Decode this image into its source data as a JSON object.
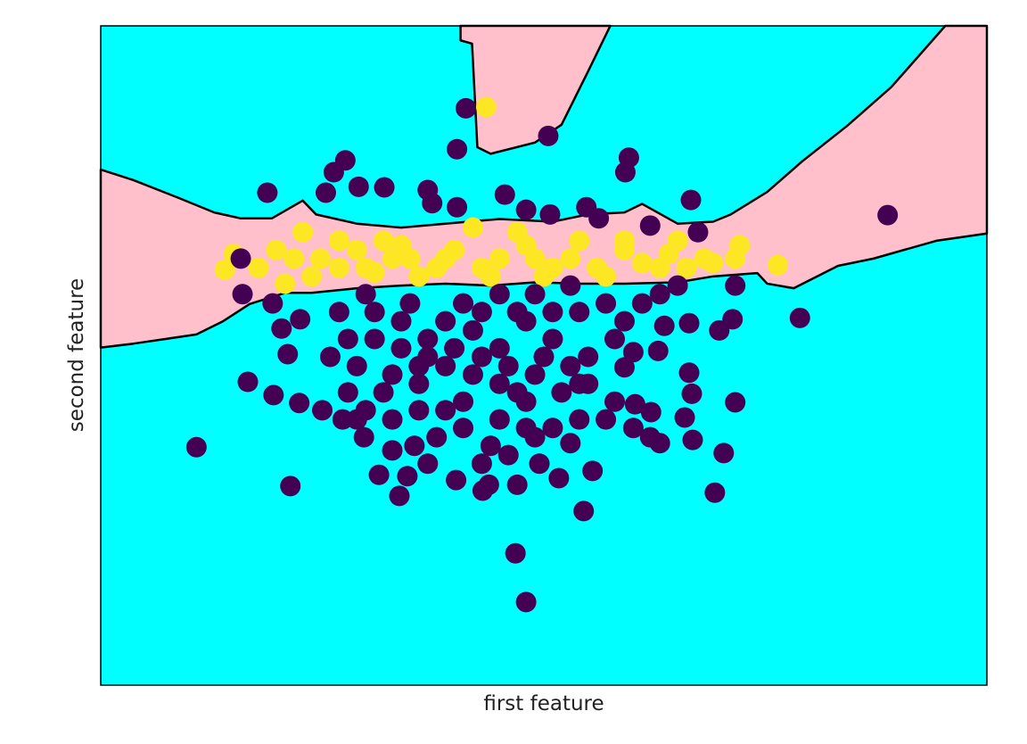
{
  "chart_data": {
    "type": "scatter",
    "title": "",
    "xlabel": "first feature",
    "ylabel": "second feature",
    "xlim": [
      0,
      100
    ],
    "ylim": [
      0,
      100
    ],
    "ticks_shown": false,
    "grid": false,
    "legend": "none",
    "colors": {
      "background_region": "#00ffff",
      "decision_region": "#ffc0cb",
      "boundary": "#000000",
      "class_0": "#440154",
      "class_1": "#fde725"
    },
    "decision_regions": [
      [
        [
          0,
          78.2
        ],
        [
          3.7,
          76.6
        ],
        [
          8.8,
          73.9
        ],
        [
          12.8,
          71.7
        ],
        [
          15.8,
          70.8
        ],
        [
          19.3,
          70.8
        ],
        [
          22.8,
          73.5
        ],
        [
          24.3,
          71.4
        ],
        [
          28.9,
          70.0
        ],
        [
          33.9,
          69.4
        ],
        [
          38.9,
          70.0
        ],
        [
          45,
          70.7
        ],
        [
          51,
          70.3
        ],
        [
          55,
          71.4
        ],
        [
          59.1,
          71.7
        ],
        [
          61.1,
          73.0
        ],
        [
          65.1,
          70.0
        ],
        [
          69.1,
          70.3
        ],
        [
          71.1,
          71.4
        ],
        [
          75.2,
          74.8
        ],
        [
          79.2,
          79.5
        ],
        [
          84.2,
          84.8
        ],
        [
          89.2,
          90.7
        ],
        [
          95.3,
          100
        ],
        [
          100,
          100
        ],
        [
          100,
          68.5
        ],
        [
          94.3,
          67.4
        ],
        [
          87.2,
          64.7
        ],
        [
          83.2,
          63.6
        ],
        [
          78.2,
          60.2
        ],
        [
          75.2,
          60.9
        ],
        [
          74.1,
          62.5
        ],
        [
          69.1,
          62.0
        ],
        [
          65.1,
          61.1
        ],
        [
          59.1,
          60.9
        ],
        [
          54,
          60.9
        ],
        [
          49,
          61.1
        ],
        [
          44,
          60.6
        ],
        [
          38.9,
          60.9
        ],
        [
          33.9,
          60.6
        ],
        [
          28.9,
          60.2
        ],
        [
          23.8,
          59.5
        ],
        [
          20.8,
          59.5
        ],
        [
          16.8,
          57.8
        ],
        [
          13.8,
          55.2
        ],
        [
          10.8,
          53.2
        ],
        [
          7.3,
          52.5
        ],
        [
          3.7,
          51.8
        ],
        [
          0,
          51.2
        ]
      ],
      [
        [
          40.6,
          100
        ],
        [
          40.6,
          97.8
        ],
        [
          41.9,
          97.3
        ],
        [
          42.5,
          81.6
        ],
        [
          44,
          80.6
        ],
        [
          49,
          82.3
        ],
        [
          52,
          85
        ],
        [
          55,
          93.1
        ],
        [
          57.5,
          100
        ]
      ]
    ],
    "series": [
      {
        "class": 1,
        "points": [
          [
            43.5,
            87.7
          ],
          [
            14.0,
            63.0
          ],
          [
            15.0,
            65.4
          ],
          [
            17.8,
            63.3
          ],
          [
            20.8,
            60.9
          ],
          [
            22.8,
            68.7
          ],
          [
            24.8,
            64.7
          ],
          [
            26.9,
            63.3
          ],
          [
            28.9,
            66.0
          ],
          [
            31.9,
            67.4
          ],
          [
            34.9,
            64.7
          ],
          [
            37.9,
            63.3
          ],
          [
            39.9,
            66.0
          ],
          [
            43.0,
            63.3
          ],
          [
            45.0,
            64.7
          ],
          [
            48.0,
            66.7
          ],
          [
            51.0,
            63.3
          ],
          [
            53.0,
            64.7
          ],
          [
            56.0,
            63.3
          ],
          [
            59.1,
            66.0
          ],
          [
            61.1,
            64.0
          ],
          [
            64.1,
            65.4
          ],
          [
            66.1,
            63.3
          ],
          [
            68.1,
            64.7
          ],
          [
            69.1,
            64.0
          ],
          [
            72.1,
            66.7
          ],
          [
            71.6,
            64.7
          ],
          [
            76.4,
            63.7
          ],
          [
            59.1,
            67.4
          ],
          [
            54.0,
            67.4
          ],
          [
            47.0,
            68.7
          ],
          [
            42.0,
            69.4
          ],
          [
            33.9,
            66.7
          ],
          [
            29.9,
            63.3
          ],
          [
            26.9,
            67.4
          ],
          [
            21.8,
            64.7
          ],
          [
            19.8,
            66.0
          ],
          [
            65.1,
            67.4
          ],
          [
            57.0,
            62.0
          ],
          [
            50.0,
            62.0
          ],
          [
            44.0,
            62.0
          ],
          [
            35.9,
            62.0
          ],
          [
            30.9,
            62.6
          ],
          [
            23.8,
            62.0
          ],
          [
            63.1,
            63.3
          ],
          [
            49.0,
            64.7
          ],
          [
            38.9,
            64.7
          ],
          [
            32.9,
            64.7
          ]
        ]
      },
      {
        "class": 0,
        "points": [
          [
            41.2,
            87.5
          ],
          [
            40.2,
            81.3
          ],
          [
            50.5,
            83.3
          ],
          [
            59.6,
            80.0
          ],
          [
            59.2,
            77.8
          ],
          [
            27.6,
            79.6
          ],
          [
            26.3,
            77.8
          ],
          [
            18.8,
            74.7
          ],
          [
            25.4,
            74.7
          ],
          [
            29.1,
            75.6
          ],
          [
            32.0,
            75.5
          ],
          [
            36.9,
            75.1
          ],
          [
            37.4,
            73.1
          ],
          [
            40.2,
            72.5
          ],
          [
            45.6,
            74.4
          ],
          [
            48.0,
            72.1
          ],
          [
            50.7,
            71.4
          ],
          [
            54.8,
            72.5
          ],
          [
            56.2,
            70.8
          ],
          [
            62.0,
            69.7
          ],
          [
            66.6,
            73.6
          ],
          [
            67.4,
            68.7
          ],
          [
            88.8,
            71.3
          ],
          [
            78.9,
            55.7
          ],
          [
            71.6,
            60.6
          ],
          [
            71.3,
            55.5
          ],
          [
            69.8,
            53.8
          ],
          [
            66.4,
            54.9
          ],
          [
            63.6,
            54.5
          ],
          [
            62.9,
            50.7
          ],
          [
            66.4,
            47.4
          ],
          [
            66.7,
            44.2
          ],
          [
            71.6,
            42.9
          ],
          [
            65.9,
            40.6
          ],
          [
            66.8,
            37.2
          ],
          [
            70.3,
            35.2
          ],
          [
            69.3,
            29.2
          ],
          [
            63.1,
            36.7
          ],
          [
            62.0,
            37.6
          ],
          [
            62.1,
            41.4
          ],
          [
            60.3,
            42.6
          ],
          [
            59.1,
            48.2
          ],
          [
            60.1,
            50.5
          ],
          [
            10.8,
            36.1
          ],
          [
            21.4,
            30.2
          ],
          [
            16.6,
            46.0
          ],
          [
            19.5,
            44.0
          ],
          [
            22.4,
            42.8
          ],
          [
            21.1,
            50.2
          ],
          [
            20.4,
            54.1
          ],
          [
            22.5,
            55.5
          ],
          [
            19.4,
            57.9
          ],
          [
            16.0,
            59.3
          ],
          [
            15.8,
            64.7
          ],
          [
            25.0,
            41.7
          ],
          [
            27.3,
            40.3
          ],
          [
            29.7,
            37.6
          ],
          [
            31.4,
            31.9
          ],
          [
            33.7,
            28.7
          ],
          [
            34.6,
            31.7
          ],
          [
            36.9,
            33.6
          ],
          [
            40.1,
            31.1
          ],
          [
            43.1,
            29.5
          ],
          [
            43.8,
            30.4
          ],
          [
            47.0,
            30.4
          ],
          [
            51.7,
            31.4
          ],
          [
            55.5,
            32.5
          ],
          [
            54.5,
            26.4
          ],
          [
            46.8,
            20.0
          ],
          [
            48.0,
            12.6
          ],
          [
            49.5,
            33.6
          ],
          [
            53.0,
            36.7
          ],
          [
            48.0,
            39.0
          ],
          [
            45.0,
            40.3
          ],
          [
            40.9,
            39.0
          ],
          [
            37.9,
            37.6
          ],
          [
            35.4,
            36.3
          ],
          [
            32.9,
            35.6
          ],
          [
            29.9,
            41.7
          ],
          [
            31.9,
            44.4
          ],
          [
            27.9,
            44.4
          ],
          [
            25.9,
            49.8
          ],
          [
            28.9,
            48.4
          ],
          [
            33.9,
            51.1
          ],
          [
            36.9,
            52.5
          ],
          [
            38.9,
            55.2
          ],
          [
            42.0,
            53.8
          ],
          [
            45.0,
            51.1
          ],
          [
            48.0,
            55.2
          ],
          [
            51.0,
            52.5
          ],
          [
            54.0,
            56.6
          ],
          [
            57.0,
            57.9
          ],
          [
            59.1,
            55.2
          ],
          [
            61.1,
            57.9
          ],
          [
            63.1,
            59.3
          ],
          [
            65.1,
            60.6
          ],
          [
            53.0,
            60.6
          ],
          [
            49.0,
            59.3
          ],
          [
            45.0,
            59.3
          ],
          [
            40.9,
            57.9
          ],
          [
            34.9,
            57.9
          ],
          [
            30.9,
            56.6
          ],
          [
            26.9,
            56.6
          ],
          [
            27.9,
            52.5
          ],
          [
            32.9,
            47.1
          ],
          [
            35.9,
            45.7
          ],
          [
            38.9,
            48.4
          ],
          [
            42.0,
            47.1
          ],
          [
            45.0,
            45.7
          ],
          [
            49.0,
            47.1
          ],
          [
            52.0,
            44.4
          ],
          [
            55.0,
            45.7
          ],
          [
            58.0,
            43.0
          ],
          [
            60.1,
            39.0
          ],
          [
            57.0,
            40.3
          ],
          [
            54.0,
            40.3
          ],
          [
            51.0,
            39.0
          ],
          [
            44.0,
            36.3
          ],
          [
            38.9,
            41.7
          ],
          [
            35.9,
            41.7
          ],
          [
            32.9,
            40.3
          ],
          [
            48.0,
            43.0
          ],
          [
            50.0,
            49.8
          ],
          [
            46.0,
            48.4
          ],
          [
            43.0,
            49.8
          ],
          [
            39.9,
            51.1
          ],
          [
            36.9,
            49.8
          ],
          [
            30.9,
            52.5
          ],
          [
            28.9,
            40.3
          ],
          [
            55.0,
            49.8
          ],
          [
            53.0,
            48.4
          ],
          [
            49.0,
            37.6
          ],
          [
            46.0,
            34.9
          ],
          [
            43.0,
            33.6
          ],
          [
            33.9,
            55.2
          ],
          [
            29.9,
            59.3
          ],
          [
            43.0,
            56.6
          ],
          [
            47.0,
            56.6
          ],
          [
            51.0,
            56.6
          ],
          [
            40.9,
            43.0
          ],
          [
            35.9,
            48.4
          ],
          [
            47.0,
            44.4
          ],
          [
            54.0,
            45.7
          ],
          [
            58.0,
            52.5
          ]
        ]
      }
    ]
  }
}
